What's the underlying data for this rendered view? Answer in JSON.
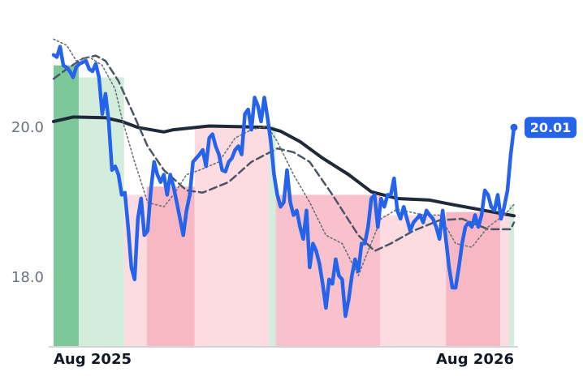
{
  "chart_data": {
    "type": "line",
    "xlim": [
      0,
      142
    ],
    "xticks": [
      {
        "value": 0,
        "label": "Aug 2025"
      },
      {
        "value": 142,
        "label": "Aug 2026"
      }
    ],
    "ylim": [
      17.09,
      21.28
    ],
    "yticks": [
      {
        "value": 18,
        "label": "18.0"
      },
      {
        "value": 20,
        "label": "20.0"
      }
    ],
    "bands": [
      {
        "from": 0,
        "to": 7.75,
        "value": 20.84,
        "color": "#7cc898"
      },
      {
        "from": 7.75,
        "to": 21.75,
        "value": 20.68,
        "color": "#d3eddd"
      },
      {
        "from": 21.75,
        "to": 28.75,
        "value": 19.11,
        "color": "#fcdbe1"
      },
      {
        "from": 28.75,
        "to": 43.5,
        "value": 19.22,
        "color": "#f8b8c3"
      },
      {
        "from": 43.5,
        "to": 66.5,
        "value": 20.03,
        "color": "#fcdbe1"
      },
      {
        "from": 66.5,
        "to": 68.5,
        "value": 20.03,
        "color": "#d3eddd"
      },
      {
        "from": 68.5,
        "to": 100.75,
        "value": 19.11,
        "color": "#f8c1cb"
      },
      {
        "from": 100.75,
        "to": 121,
        "value": 18.84,
        "color": "#fcdbe1"
      },
      {
        "from": 121,
        "to": 137.75,
        "value": 18.88,
        "color": "#f8b8c3"
      },
      {
        "from": 137.75,
        "to": 140.5,
        "value": 18.88,
        "color": "#fcdbe1"
      },
      {
        "from": 140.5,
        "to": 142,
        "value": 18.98,
        "color": "#d3eddd"
      }
    ],
    "series": [
      {
        "color": "#1f2937",
        "style": "solid",
        "x": [
          0,
          6,
          16,
          21,
          26,
          34,
          37,
          48,
          58,
          66,
          70,
          76,
          83,
          91,
          98,
          106,
          116,
          123,
          133,
          142
        ],
        "values": [
          20.09,
          20.15,
          20.14,
          20.09,
          20.01,
          19.95,
          19.98,
          20.03,
          20.02,
          20.01,
          19.96,
          19.82,
          19.6,
          19.38,
          19.15,
          19.06,
          19.04,
          18.98,
          18.9,
          18.83
        ]
      },
      {
        "color": "#4b5563",
        "style": "dashed",
        "x": [
          0,
          4,
          9,
          13,
          16,
          20,
          24,
          29,
          34,
          41,
          46,
          54,
          61,
          69,
          74,
          79,
          86,
          94,
          99,
          104,
          111,
          119,
          126,
          134,
          141,
          142
        ],
        "values": [
          20.66,
          20.79,
          20.93,
          20.97,
          20.9,
          20.63,
          20.25,
          19.76,
          19.44,
          19.17,
          19.14,
          19.28,
          19.55,
          19.73,
          19.68,
          19.55,
          19.11,
          18.57,
          18.36,
          18.46,
          18.63,
          18.77,
          18.79,
          18.65,
          18.65,
          18.74
        ]
      },
      {
        "color": "#6b7280",
        "style": "dotted",
        "x": [
          0,
          4,
          7,
          11,
          15,
          19,
          21,
          25,
          29,
          34,
          37,
          41,
          45,
          51,
          56,
          61,
          66,
          69,
          74,
          79,
          84,
          89,
          94,
          97,
          101,
          106,
          114,
          119,
          124,
          129,
          134,
          139,
          142
        ],
        "values": [
          21.19,
          21.11,
          20.9,
          20.95,
          20.84,
          20.52,
          20.14,
          19.55,
          19.01,
          18.95,
          19.11,
          19.38,
          19.44,
          19.55,
          19.87,
          19.98,
          20.03,
          19.82,
          19.38,
          19.01,
          18.57,
          18.46,
          18.03,
          18.36,
          18.79,
          18.92,
          18.84,
          18.84,
          18.46,
          18.41,
          18.68,
          18.84,
          18.98
        ]
      },
      {
        "color": "#2563eb",
        "style": "main",
        "values": [
          20.98,
          20.95,
          21.09,
          20.84,
          20.81,
          20.76,
          20.68,
          20.82,
          20.86,
          20.88,
          20.9,
          20.79,
          20.76,
          20.86,
          20.68,
          20.19,
          20.46,
          20.09,
          19.44,
          19.49,
          19.38,
          19.11,
          19.14,
          18.68,
          18.14,
          17.98,
          18.79,
          19.06,
          18.57,
          18.63,
          19.17,
          19.55,
          19.38,
          19.28,
          19.38,
          19.11,
          19.38,
          19.22,
          19.01,
          18.79,
          18.57,
          18.9,
          19.11,
          19.55,
          19.6,
          19.65,
          19.71,
          19.49,
          19.87,
          19.92,
          19.76,
          19.65,
          19.44,
          19.42,
          19.55,
          19.6,
          19.71,
          19.76,
          19.65,
          20.19,
          20.25,
          19.98,
          20.41,
          20.3,
          20.09,
          20.41,
          20.14,
          19.82,
          19.38,
          19.11,
          18.95,
          19.01,
          19.44,
          19.01,
          18.84,
          18.9,
          18.68,
          18.52,
          18.9,
          18.14,
          18.46,
          18.36,
          18.19,
          17.92,
          17.6,
          17.98,
          17.92,
          18.25,
          18.03,
          17.98,
          17.49,
          17.71,
          18.03,
          18.25,
          18.09,
          18.46,
          18.46,
          18.68,
          19.06,
          19.11,
          18.68,
          19.06,
          18.95,
          19.11,
          19.11,
          19.33,
          18.9,
          18.79,
          18.95,
          18.79,
          18.63,
          18.74,
          18.79,
          18.84,
          18.74,
          18.9,
          18.84,
          18.79,
          18.68,
          18.52,
          18.9,
          18.52,
          18.14,
          17.87,
          17.87,
          18.14,
          18.46,
          18.68,
          18.74,
          18.68,
          18.84,
          18.68,
          18.84,
          19.17,
          19.11,
          18.95,
          18.9,
          19.11,
          18.79,
          18.95,
          19.17,
          19.65,
          20.01
        ]
      }
    ]
  }
}
